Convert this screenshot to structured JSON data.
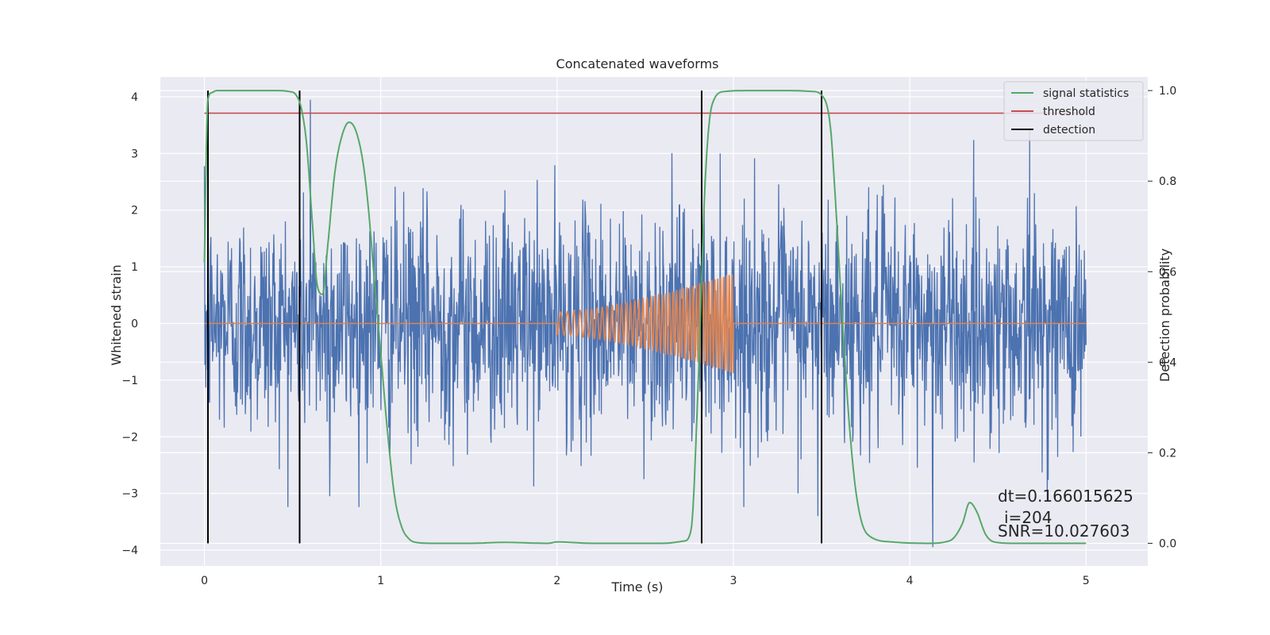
{
  "chart_data": {
    "type": "line",
    "title": "Concatenated waveforms",
    "xlabel": "Time (s)",
    "ylabel": "Whitened strain",
    "y2label": "Detection probability",
    "xlim": [
      -0.25,
      5.35
    ],
    "ylim": [
      -4.28,
      4.35
    ],
    "y2lim": [
      -0.05,
      1.03
    ],
    "xticks": [
      0,
      1,
      2,
      3,
      4,
      5
    ],
    "yticks": [
      -4,
      -3,
      -2,
      -1,
      0,
      1,
      2,
      3,
      4
    ],
    "y2ticks": [
      0.0,
      0.2,
      0.4,
      0.6,
      0.8,
      1.0
    ],
    "grid": true,
    "legend_position": "top-right",
    "colors": {
      "plot_background": "#eaeaf2",
      "grid": "#ffffff",
      "noise": "#4c72b0",
      "template": "#dd8452",
      "statistics": "#55a868",
      "threshold": "#c44e52",
      "detection": "#000000"
    },
    "series": [
      {
        "name": "",
        "kind": "whitened-strain-noise",
        "x_range": [
          0,
          5
        ],
        "samples": 2048,
        "envelope_peak": 3.95,
        "typical_amplitude": 1.0,
        "spikes": [
          {
            "x": 0.6,
            "y": 3.95
          },
          {
            "x": 4.13,
            "y": -3.95
          },
          {
            "x": 3.48,
            "y": -3.4
          },
          {
            "x": 0.71,
            "y": -3.05
          },
          {
            "x": 4.68,
            "y": 3.45
          }
        ]
      },
      {
        "name": "",
        "kind": "template-chirp",
        "x_range": [
          0,
          5
        ],
        "chirp_start": 2.0,
        "chirp_end": 3.0,
        "amplitude_start": 0.2,
        "amplitude_end": 0.88,
        "cycles": 44
      },
      {
        "name": "signal statistics",
        "axis": "right",
        "x": [
          0,
          0.01,
          0.02,
          0.04,
          0.07,
          0.1,
          0.2,
          0.3,
          0.4,
          0.48,
          0.52,
          0.55,
          0.58,
          0.61,
          0.64,
          0.67,
          0.7,
          0.74,
          0.78,
          0.82,
          0.86,
          0.9,
          0.93,
          0.96,
          1.0,
          1.04,
          1.08,
          1.12,
          1.16,
          1.2,
          1.3,
          1.5,
          1.7,
          1.95,
          2.0,
          2.2,
          2.6,
          2.72,
          2.76,
          2.8,
          2.84,
          2.88,
          2.95,
          3.1,
          3.3,
          3.45,
          3.5,
          3.55,
          3.58,
          3.62,
          3.66,
          3.7,
          3.76,
          3.9,
          4.1,
          4.2,
          4.25,
          4.3,
          4.34,
          4.38,
          4.43,
          4.48,
          4.6,
          5.0
        ],
        "values": [
          0.62,
          0.85,
          0.98,
          0.995,
          1.0,
          1.0,
          1.0,
          1.0,
          1.0,
          0.998,
          0.99,
          0.96,
          0.88,
          0.72,
          0.57,
          0.55,
          0.66,
          0.82,
          0.9,
          0.93,
          0.91,
          0.84,
          0.74,
          0.6,
          0.42,
          0.24,
          0.1,
          0.035,
          0.01,
          0.002,
          0.0,
          0.0,
          0.002,
          0.0,
          0.003,
          0.0,
          0.0,
          0.005,
          0.03,
          0.35,
          0.8,
          0.97,
          0.998,
          1.0,
          1.0,
          0.998,
          0.99,
          0.92,
          0.75,
          0.48,
          0.25,
          0.1,
          0.02,
          0.003,
          0.0,
          0.003,
          0.012,
          0.045,
          0.09,
          0.07,
          0.02,
          0.003,
          0.0,
          0.0
        ]
      },
      {
        "name": "threshold",
        "axis": "right",
        "x": [
          0,
          5
        ],
        "values": [
          0.95,
          0.95
        ]
      },
      {
        "name": "detection",
        "axis": "right",
        "x": [
          0.02,
          0.54,
          2.82,
          3.5
        ],
        "range": [
          0.0,
          1.0
        ]
      }
    ],
    "annotations": [
      "dt=0.166015625",
      "i=204",
      "SNR=10.027603"
    ]
  }
}
